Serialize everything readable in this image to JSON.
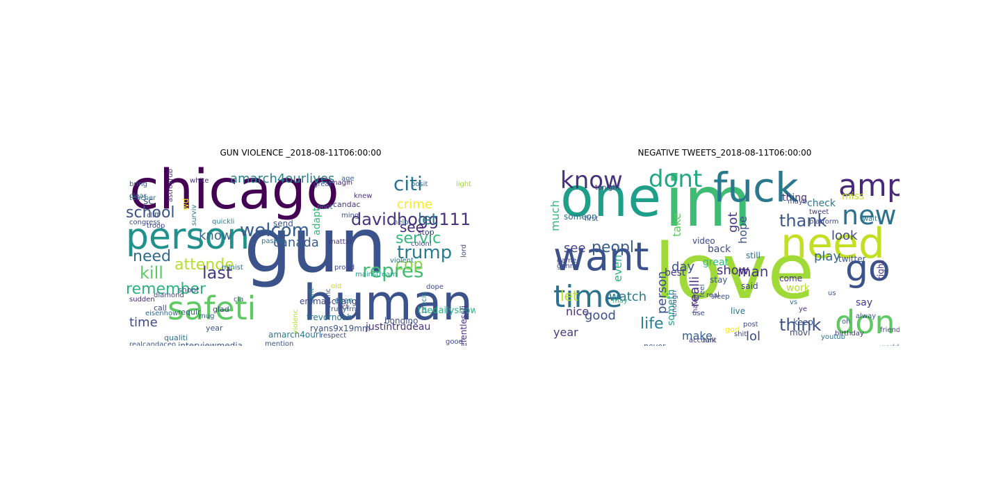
{
  "figure": {
    "panels": [
      {
        "title": "GUN VIOLENCE _2018-08-11T06:00:00",
        "words": [
          {
            "text": "chicago",
            "color": "#440154"
          },
          {
            "text": "gun",
            "color": "#3b528b"
          },
          {
            "text": "human",
            "color": "#3b528b"
          },
          {
            "text": "person",
            "color": "#21918c"
          },
          {
            "text": "safeti",
            "color": "#5ec962"
          },
          {
            "text": "davidhogg111",
            "color": "#46327e"
          },
          {
            "text": "welcom",
            "color": "#365c8d"
          },
          {
            "text": "amarch4ourlives",
            "color": "#277f8e"
          },
          {
            "text": "citi",
            "color": "#2c728e"
          },
          {
            "text": "school",
            "color": "#3b528b"
          },
          {
            "text": "repres",
            "color": "#3fbc73"
          },
          {
            "text": "remember",
            "color": "#2db27d"
          },
          {
            "text": "attende",
            "color": "#b5de2b"
          },
          {
            "text": "kill",
            "color": "#5ec962"
          },
          {
            "text": "last",
            "color": "#443983"
          },
          {
            "text": "need",
            "color": "#31688e"
          },
          {
            "text": "trump",
            "color": "#287c8e"
          },
          {
            "text": "servic",
            "color": "#35b779"
          },
          {
            "text": "crime",
            "color": "#fde725"
          },
          {
            "text": "let",
            "color": "#2a788e"
          },
          {
            "text": "know",
            "color": "#31688e"
          },
          {
            "text": "see",
            "color": "#482878"
          },
          {
            "text": "cop",
            "color": "#84d44b"
          },
          {
            "text": "canada",
            "color": "#365c8d"
          },
          {
            "text": "time",
            "color": "#3e4989"
          },
          {
            "text": "justintrudeau",
            "color": "#46337e"
          },
          {
            "text": "ryans9x19mm",
            "color": "#3b528b"
          },
          {
            "text": "emma4chang",
            "color": "#414487"
          },
          {
            "text": "bring",
            "color": "#39568c"
          },
          {
            "text": "white",
            "color": "#472f7d"
          },
          {
            "text": "imagin",
            "color": "#482173"
          },
          {
            "text": "posit",
            "color": "#31688e"
          },
          {
            "text": "light",
            "color": "#a0da39"
          },
          {
            "text": "stop",
            "color": "#443a83"
          },
          {
            "text": "help",
            "color": "#365d8d"
          },
          {
            "text": "coloni",
            "color": "#3e4989"
          },
          {
            "text": "mattxr",
            "color": "#46327e"
          },
          {
            "text": "send",
            "color": "#3b528b"
          },
          {
            "text": "pastor",
            "color": "#2c728e"
          },
          {
            "text": "quickli",
            "color": "#287d8e"
          },
          {
            "text": "troop",
            "color": "#3f4788"
          },
          {
            "text": "violent",
            "color": "#2e6e8e"
          },
          {
            "text": "mainstream",
            "color": "#1f9e89"
          },
          {
            "text": "dope",
            "color": "#3e4a89"
          },
          {
            "text": "bongino",
            "color": "#3b528b"
          },
          {
            "text": "thedailyshow",
            "color": "#2db27d"
          },
          {
            "text": "trevornoah",
            "color": "#2c728e"
          },
          {
            "text": "diamond",
            "color": "#404688"
          },
          {
            "text": "sudden",
            "color": "#472c7a"
          },
          {
            "text": "shoot",
            "color": "#3b528b"
          },
          {
            "text": "call",
            "color": "#3f4889"
          },
          {
            "text": "glad",
            "color": "#414487"
          },
          {
            "text": "requir",
            "color": "#365c8d"
          },
          {
            "text": "qualiti",
            "color": "#2c728e"
          },
          {
            "text": "interviewmedia",
            "color": "#3b528b"
          },
          {
            "text": "realcandaceo",
            "color": "#39568c"
          },
          {
            "text": "amarch4ourl",
            "color": "#2a788e"
          },
          {
            "text": "relentlessli",
            "color": "#46327e"
          },
          {
            "text": "good",
            "color": "#3e4989"
          },
          {
            "text": "candac",
            "color": "#443983"
          },
          {
            "text": "knew",
            "color": "#46327e"
          },
          {
            "text": "age",
            "color": "#365d8d"
          },
          {
            "text": "year",
            "color": "#3b528b"
          },
          {
            "text": "cla",
            "color": "#39568c"
          },
          {
            "text": "old",
            "color": "#c2df23"
          },
          {
            "text": "even",
            "color": "#2a788e"
          },
          {
            "text": "cant",
            "color": "#277f8e"
          },
          {
            "text": "chanc",
            "color": "#3b528b"
          },
          {
            "text": "precio",
            "color": "#287c8e"
          },
          {
            "text": "lord",
            "color": "#3e4989"
          },
          {
            "text": "eisenhow",
            "color": "#31688e"
          },
          {
            "text": "sc",
            "color": "#3b528b"
          },
          {
            "text": "wd",
            "color": "#fde725"
          },
          {
            "text": "adapt",
            "color": "#35b779"
          },
          {
            "text": "surviv",
            "color": "#2c728e"
          },
          {
            "text": "violenc",
            "color": "#b5de2b"
          },
          {
            "text": "mention",
            "color": "#3b528b"
          },
          {
            "text": "proud",
            "color": "#414487"
          },
          {
            "text": "respect",
            "color": "#3e4989"
          },
          {
            "text": "mug",
            "color": "#365c8d"
          },
          {
            "text": "astroyrub",
            "color": "#46327e"
          },
          {
            "text": "cliff",
            "color": "#3b528b"
          },
          {
            "text": "teacher",
            "color": "#2c728e"
          },
          {
            "text": "mingi",
            "color": "#3b528b"
          },
          {
            "text": "poot",
            "color": "#2a788e"
          },
          {
            "text": "act",
            "color": "#46327e"
          },
          {
            "text": "rubyfrn",
            "color": "#365c8d"
          },
          {
            "text": "congress",
            "color": "#3e4989"
          },
          {
            "text": "clear",
            "color": "#31688e"
          },
          {
            "text": "minist",
            "color": "#2c728e"
          },
          {
            "text": "great",
            "color": "#3b528b"
          },
          {
            "text": "terrorist",
            "color": "#414487"
          }
        ]
      },
      {
        "title": "NEGATIVE TWEETS_2018-08-11T06:00:00",
        "words": [
          {
            "text": "love",
            "color": "#a0da39"
          },
          {
            "text": "im",
            "color": "#3fbc73"
          },
          {
            "text": "one",
            "color": "#1f9e89"
          },
          {
            "text": "fuck",
            "color": "#2a788e"
          },
          {
            "text": "want",
            "color": "#3b528b"
          },
          {
            "text": "need",
            "color": "#c2df23"
          },
          {
            "text": "time",
            "color": "#2c728e"
          },
          {
            "text": "go",
            "color": "#3b528b"
          },
          {
            "text": "don",
            "color": "#5ec962"
          },
          {
            "text": "amp",
            "color": "#482878"
          },
          {
            "text": "new",
            "color": "#2c728e"
          },
          {
            "text": "dont",
            "color": "#22a884"
          },
          {
            "text": "know",
            "color": "#46327e"
          },
          {
            "text": "thank",
            "color": "#39568c"
          },
          {
            "text": "peopl",
            "color": "#365c8d"
          },
          {
            "text": "watch",
            "color": "#2a788e"
          },
          {
            "text": "good",
            "color": "#3b528b"
          },
          {
            "text": "think",
            "color": "#3b528b"
          },
          {
            "text": "life",
            "color": "#287d8e"
          },
          {
            "text": "play",
            "color": "#31688e"
          },
          {
            "text": "look",
            "color": "#3e4989"
          },
          {
            "text": "man",
            "color": "#443983"
          },
          {
            "text": "show",
            "color": "#472f7d"
          },
          {
            "text": "see",
            "color": "#414487"
          },
          {
            "text": "day",
            "color": "#3b528b"
          },
          {
            "text": "year",
            "color": "#443983"
          },
          {
            "text": "let",
            "color": "#b5de2b"
          },
          {
            "text": "nice",
            "color": "#46327e"
          },
          {
            "text": "lol",
            "color": "#3e4989"
          },
          {
            "text": "make",
            "color": "#365c8d"
          },
          {
            "text": "got",
            "color": "#443983"
          },
          {
            "text": "hope",
            "color": "#3b528b"
          },
          {
            "text": "take",
            "color": "#5ec962"
          },
          {
            "text": "much",
            "color": "#35b779"
          },
          {
            "text": "even",
            "color": "#2db27d"
          },
          {
            "text": "person",
            "color": "#3b528b"
          },
          {
            "text": "realli",
            "color": "#46327e"
          },
          {
            "text": "someth",
            "color": "#1f9e89"
          },
          {
            "text": "say",
            "color": "#443983"
          },
          {
            "text": "work",
            "color": "#b5de2b"
          },
          {
            "text": "check",
            "color": "#2a788e"
          },
          {
            "text": "miss",
            "color": "#c2df23"
          },
          {
            "text": "thing",
            "color": "#472f7d"
          },
          {
            "text": "back",
            "color": "#3e4989"
          },
          {
            "text": "still",
            "color": "#2c728e"
          },
          {
            "text": "twitter",
            "color": "#3b528b"
          },
          {
            "text": "someon",
            "color": "#2c728e"
          },
          {
            "text": "great",
            "color": "#35b779"
          },
          {
            "text": "best",
            "color": "#443983"
          },
          {
            "text": "video",
            "color": "#3e4989"
          },
          {
            "text": "stay",
            "color": "#39568c"
          },
          {
            "text": "come",
            "color": "#46327e"
          },
          {
            "text": "keep",
            "color": "#3b528b"
          },
          {
            "text": "live",
            "color": "#2c728e"
          },
          {
            "text": "said",
            "color": "#414487"
          },
          {
            "text": "movi",
            "color": "#3e4989"
          },
          {
            "text": "god",
            "color": "#fde725"
          },
          {
            "text": "fan",
            "color": "#443983"
          },
          {
            "text": "never",
            "color": "#3b528b"
          },
          {
            "text": "talk",
            "color": "#39568c"
          },
          {
            "text": "post",
            "color": "#3e4989"
          },
          {
            "text": "ye",
            "color": "#46327e"
          },
          {
            "text": "vs",
            "color": "#2c728e"
          },
          {
            "text": "us",
            "color": "#3b528b"
          },
          {
            "text": "shit",
            "color": "#414487"
          },
          {
            "text": "use",
            "color": "#3e4989"
          },
          {
            "text": "real",
            "color": "#443983"
          },
          {
            "text": "enough",
            "color": "#365c8d"
          },
          {
            "text": "alway",
            "color": "#3b528b"
          },
          {
            "text": "start",
            "color": "#2c728e"
          },
          {
            "text": "birthday",
            "color": "#46327e"
          },
          {
            "text": "friend",
            "color": "#3e4989"
          },
          {
            "text": "right",
            "color": "#443983"
          },
          {
            "text": "may",
            "color": "#35b779"
          },
          {
            "text": "mayb",
            "color": "#3e4989"
          },
          {
            "text": "sleep",
            "color": "#3b528b"
          },
          {
            "text": "haven",
            "color": "#46327e"
          },
          {
            "text": "youtub",
            "color": "#2c728e"
          },
          {
            "text": "world",
            "color": "#365c8d"
          },
          {
            "text": "feel",
            "color": "#3b528b"
          },
          {
            "text": "platform",
            "color": "#3e4989"
          },
          {
            "text": "tweet",
            "color": "#443983"
          },
          {
            "text": "wait",
            "color": "#2c728e"
          },
          {
            "text": "oh",
            "color": "#3b528b"
          },
          {
            "text": "game",
            "color": "#414487"
          },
          {
            "text": "gonna",
            "color": "#3e4989"
          },
          {
            "text": "account",
            "color": "#443983"
          },
          {
            "text": "first",
            "color": "#3b528b"
          },
          {
            "text": "tonight",
            "color": "#46327e"
          }
        ]
      }
    ]
  }
}
